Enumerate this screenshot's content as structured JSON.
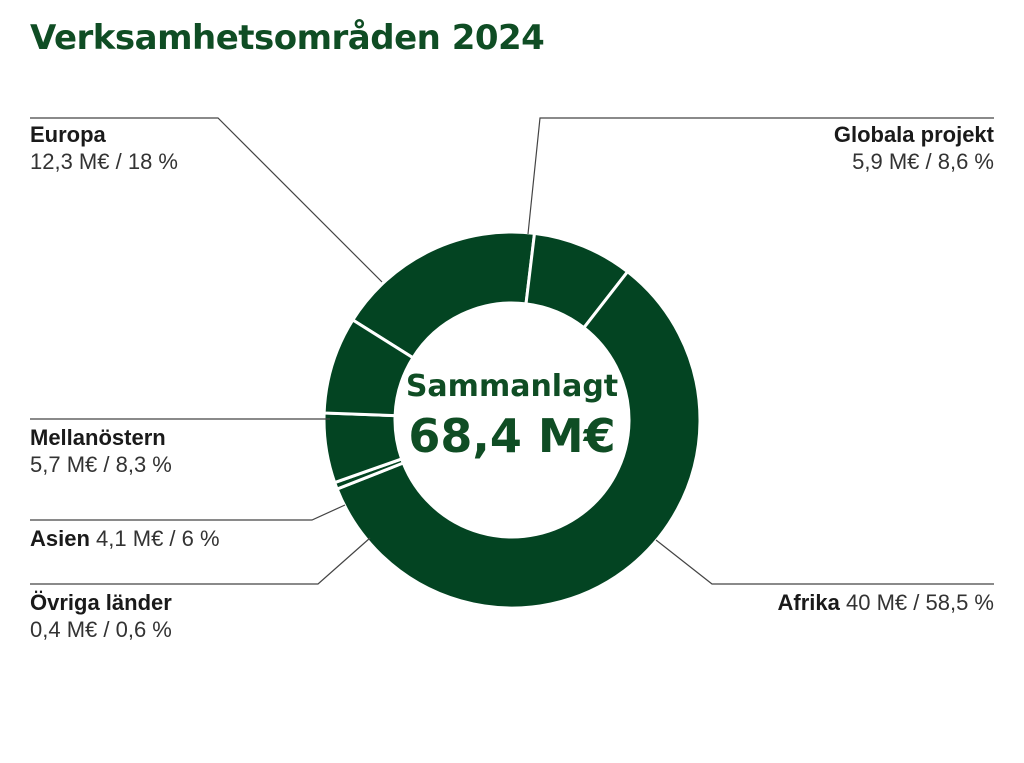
{
  "title": "Verksamhetsområden 2024",
  "accent": "#034422",
  "chart_data": {
    "type": "pie",
    "title": "Verksamhetsområden 2024",
    "center_label": "Sammanlagt",
    "center_total": "68,4 M€",
    "slices": [
      {
        "name": "Europa",
        "value": 12.3,
        "value_label": "12,3 M€ / 18 %"
      },
      {
        "name": "Globala projekt",
        "value": 5.9,
        "value_label": "5,9 M€ / 8,6 %"
      },
      {
        "name": "Afrika",
        "value": 40,
        "value_label": "40 M€ / 58,5 %"
      },
      {
        "name": "Övriga länder",
        "value": 0.4,
        "value_label": "0,4 M€ / 0,6 %"
      },
      {
        "name": "Asien",
        "value": 4.1,
        "value_label": "4,1 M€ / 6 %"
      },
      {
        "name": "Mellanöstern",
        "value": 5.7,
        "value_label": "5,7 M€ / 8,3 %"
      }
    ]
  }
}
